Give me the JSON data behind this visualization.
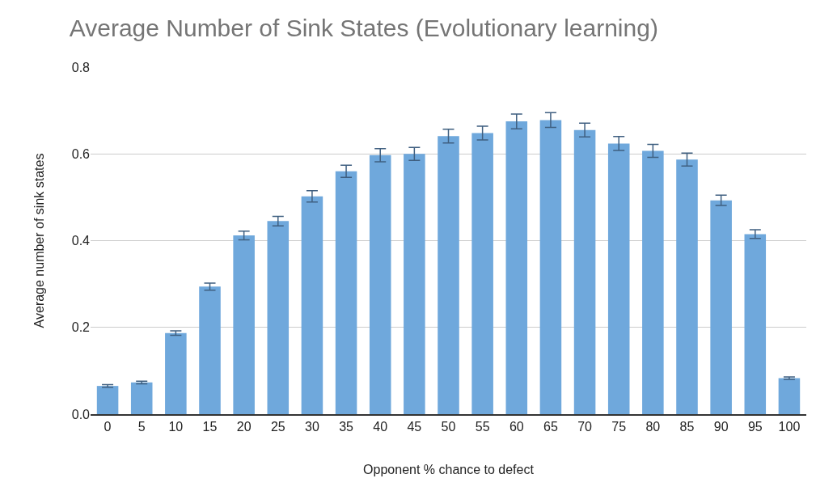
{
  "chart_data": {
    "type": "bar",
    "title": "Average Number of Sink States (Evolutionary learning)",
    "xlabel": "Opponent % chance to defect",
    "ylabel": "Average number of sink states",
    "categories": [
      "0",
      "5",
      "10",
      "15",
      "20",
      "25",
      "30",
      "35",
      "40",
      "45",
      "50",
      "55",
      "60",
      "65",
      "70",
      "75",
      "80",
      "85",
      "90",
      "95",
      "100"
    ],
    "series": [
      {
        "color": "#6fa8dc",
        "values": [
          0.065,
          0.073,
          0.187,
          0.294,
          0.412,
          0.445,
          0.502,
          0.56,
          0.597,
          0.6,
          0.641,
          0.648,
          0.675,
          0.678,
          0.655,
          0.624,
          0.607,
          0.587,
          0.493,
          0.415,
          0.083
        ],
        "errors": [
          0.003,
          0.003,
          0.005,
          0.008,
          0.01,
          0.011,
          0.013,
          0.014,
          0.015,
          0.015,
          0.016,
          0.016,
          0.017,
          0.017,
          0.016,
          0.016,
          0.015,
          0.015,
          0.012,
          0.01,
          0.003
        ]
      }
    ],
    "ylim": [
      0,
      0.8
    ],
    "yticks": [
      {
        "value": 0,
        "label": "0.0"
      },
      {
        "value": 0.2,
        "label": "0.2"
      },
      {
        "value": 0.4,
        "label": "0.4"
      },
      {
        "value": 0.6,
        "label": "0.6"
      },
      {
        "value": 0.8,
        "label": "0.8"
      }
    ],
    "grid": "y"
  }
}
